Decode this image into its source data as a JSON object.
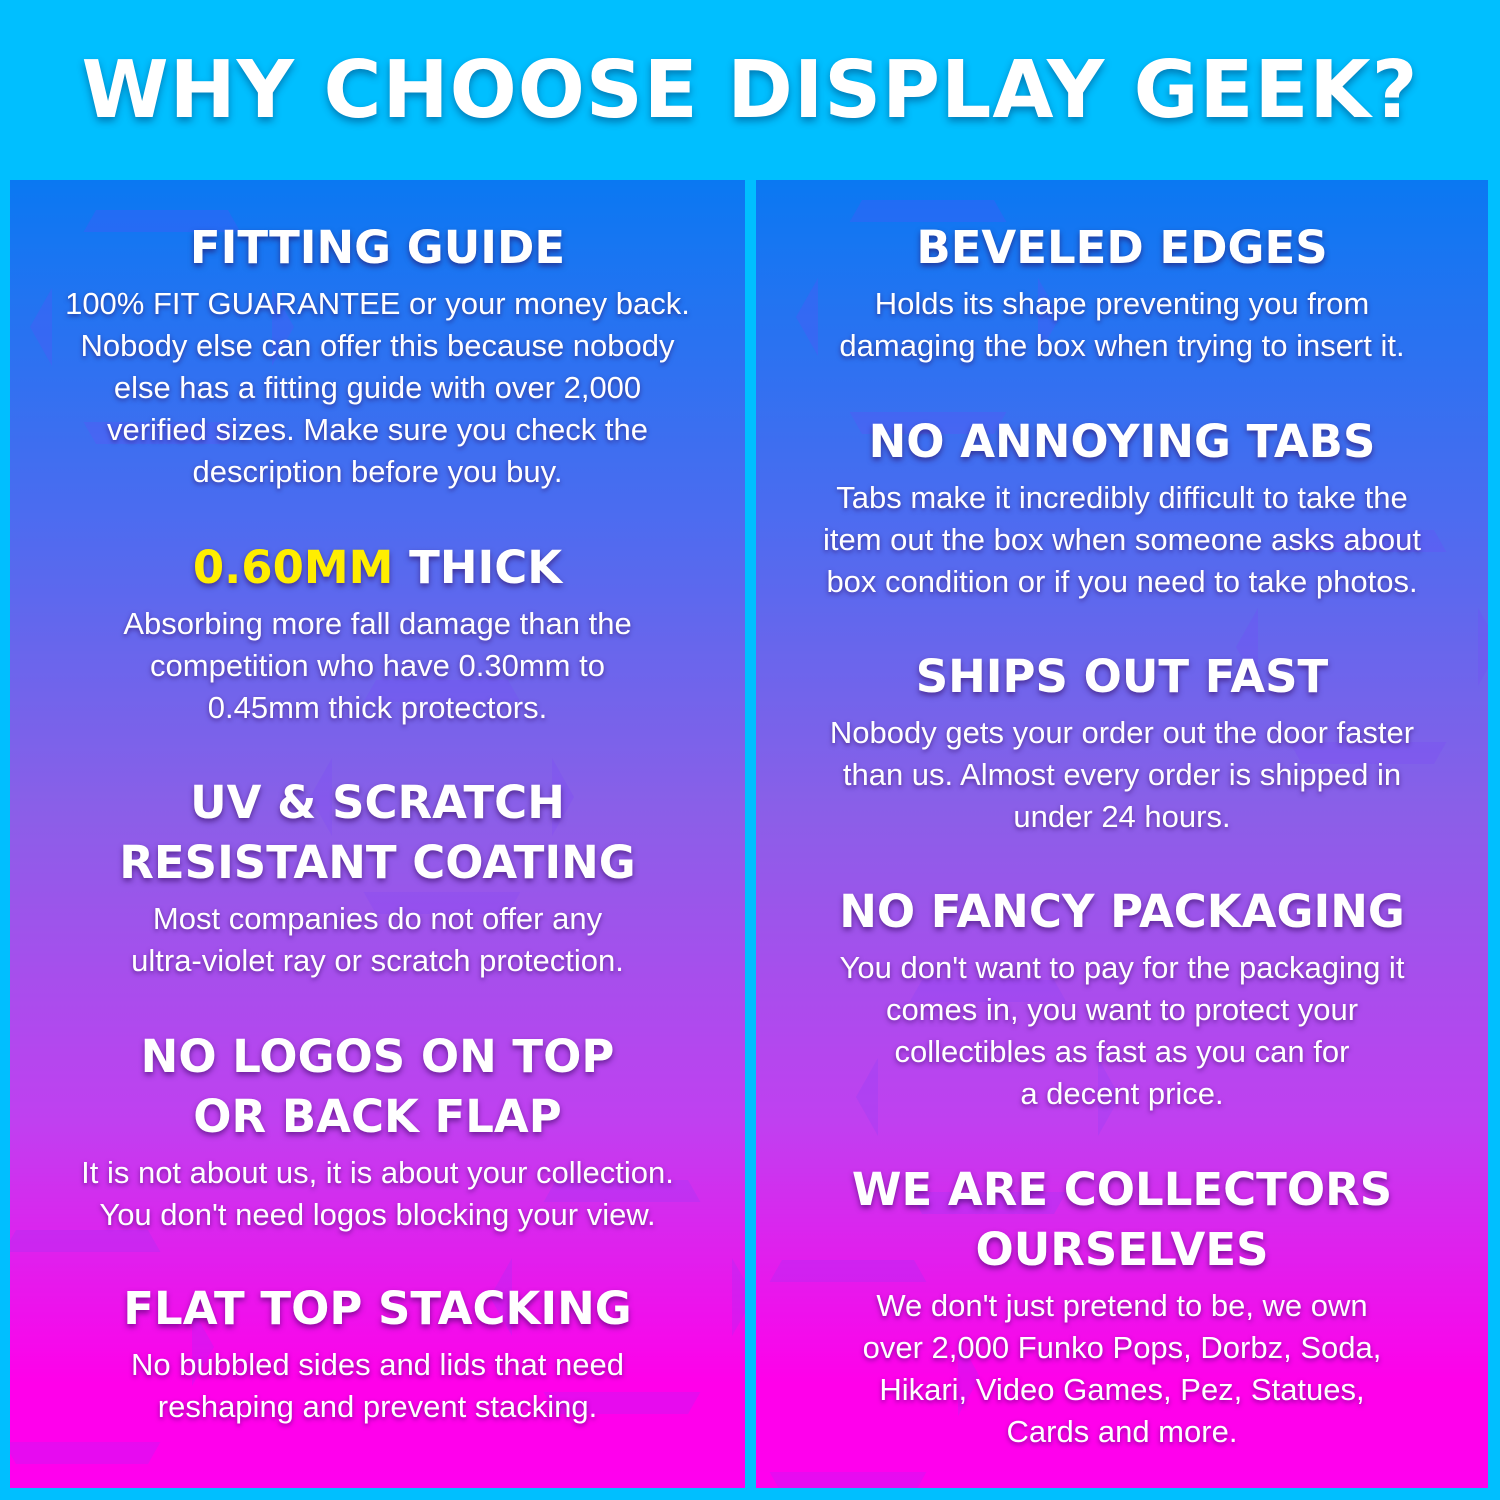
{
  "header": {
    "title": "WHY CHOOSE DISPLAY GEEK?"
  },
  "colors": {
    "background": "#00bfff",
    "highlight": "#ffee00",
    "gradient_top": "#0a78f2",
    "gradient_mid": "#8a5fe8",
    "gradient_bottom": "#ff00ee"
  },
  "left": [
    {
      "title": [
        "FITTING GUIDE"
      ],
      "body": [
        "100% FIT GUARANTEE or your money back.",
        "Nobody else can offer this because nobody",
        "else has a fitting guide with over 2,000",
        "verified sizes. Make sure you check the",
        "description before you buy."
      ]
    },
    {
      "title_highlight": "0.60MM",
      "title_rest": " THICK",
      "body": [
        "Absorbing more fall damage than the",
        "competition who have 0.30mm to",
        "0.45mm thick protectors."
      ]
    },
    {
      "title": [
        "UV & SCRATCH",
        "RESISTANT COATING"
      ],
      "body": [
        "Most companies do not offer any",
        "ultra-violet ray or scratch protection."
      ]
    },
    {
      "title": [
        "NO LOGOS ON TOP",
        "OR BACK FLAP"
      ],
      "body": [
        "It is not about us, it is about your collection.",
        "You don't need logos blocking your view."
      ]
    },
    {
      "title": [
        "FLAT TOP STACKING"
      ],
      "body": [
        "No bubbled sides and lids that need",
        "reshaping and prevent stacking."
      ]
    }
  ],
  "right": [
    {
      "title": [
        "BEVELED EDGES"
      ],
      "body": [
        "Holds its shape preventing you from",
        "damaging the box when trying to insert it."
      ]
    },
    {
      "title": [
        "NO ANNOYING TABS"
      ],
      "body": [
        "Tabs make it incredibly difficult to take the",
        "item out the box when someone asks about",
        "box condition or if you need to take photos."
      ]
    },
    {
      "title": [
        "SHIPS OUT FAST"
      ],
      "body": [
        "Nobody gets your order out the door faster",
        "than us. Almost every order is shipped in",
        "under 24 hours."
      ]
    },
    {
      "title": [
        "NO FANCY PACKAGING"
      ],
      "body": [
        "You don't want to pay for the packaging it",
        "comes in, you want to protect your",
        "collectibles as fast as you can for",
        "a decent price."
      ]
    },
    {
      "title": [
        "WE ARE COLLECTORS",
        "OURSELVES"
      ],
      "body": [
        "We don't just pretend to be, we own",
        "over 2,000 Funko Pops, Dorbz, Soda,",
        "Hikari, Video Games, Pez, Statues,",
        "Cards and more."
      ]
    }
  ]
}
